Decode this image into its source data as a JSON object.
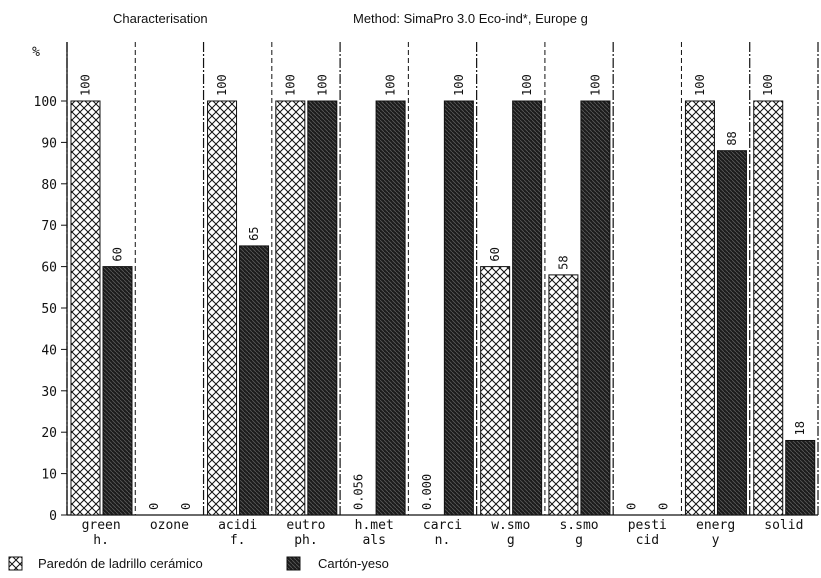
{
  "header": {
    "left": "Characterisation",
    "right": "Method: SimaPro 3.0 Eco-ind*, Europe g"
  },
  "chart_data": {
    "type": "bar",
    "ylabel": "%",
    "ylim": [
      0,
      100
    ],
    "yticks": [
      "0",
      "10",
      "20",
      "30",
      "40",
      "50",
      "60",
      "70",
      "80",
      "90",
      "100"
    ],
    "categories": [
      [
        "green",
        "h."
      ],
      [
        "ozone",
        ""
      ],
      [
        "acidi",
        "f."
      ],
      [
        "eutro",
        "ph."
      ],
      [
        "h.met",
        "als"
      ],
      [
        "carci",
        "n."
      ],
      [
        "w.smo",
        "g"
      ],
      [
        "s.smo",
        "g"
      ],
      [
        "pesti",
        "cid"
      ],
      [
        "energ",
        "y"
      ],
      [
        "solid",
        ""
      ]
    ],
    "series": [
      {
        "name": "Paredón de ladrillo cerámico",
        "pattern": "crosshatch",
        "values": [
          100,
          0,
          100,
          100,
          0.056,
          0.0,
          60,
          58,
          0,
          100,
          100
        ],
        "labels": [
          "100",
          "0",
          "100",
          "100",
          "0.056",
          "0.000",
          "60",
          "58",
          "0",
          "100",
          "100"
        ]
      },
      {
        "name": "Cartón-yeso",
        "pattern": "dark-dense",
        "values": [
          60,
          0,
          65,
          100,
          100,
          100,
          100,
          100,
          0,
          88,
          18
        ],
        "labels": [
          "60",
          "0",
          "65",
          "100",
          "100",
          "100",
          "100",
          "100",
          "0",
          "88",
          "18"
        ]
      }
    ],
    "grid": false,
    "legend_position": "bottom-left"
  }
}
